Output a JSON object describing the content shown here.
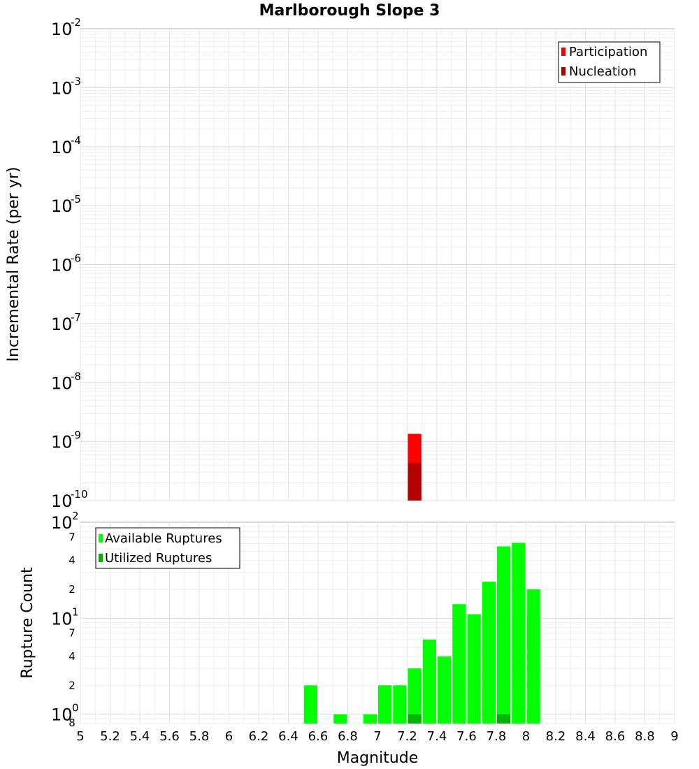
{
  "chart_data": [
    {
      "type": "bar",
      "title": "Marlborough Slope 3",
      "xlabel": "Magnitude",
      "ylabel": "Incremental Rate (per yr)",
      "yscale": "log",
      "xlim": [
        5,
        9
      ],
      "ylim": [
        1e-10,
        0.01
      ],
      "y_ticks": [
        {
          "base": "10",
          "exp": "-2"
        },
        {
          "base": "10",
          "exp": "-3"
        },
        {
          "base": "10",
          "exp": "-4"
        },
        {
          "base": "10",
          "exp": "-5"
        },
        {
          "base": "10",
          "exp": "-6"
        },
        {
          "base": "10",
          "exp": "-7"
        },
        {
          "base": "10",
          "exp": "-8"
        },
        {
          "base": "10",
          "exp": "-9"
        },
        {
          "base": "10",
          "exp": "-10"
        }
      ],
      "legend": {
        "position": "top-right",
        "entries": [
          "Participation",
          "Nucleation"
        ]
      },
      "series": [
        {
          "name": "Participation",
          "color": "#ff0000",
          "points": [
            {
              "x": 7.25,
              "y": 1.35e-09
            }
          ]
        },
        {
          "name": "Nucleation",
          "color": "#b30000",
          "points": [
            {
              "x": 7.25,
              "y": 4.3e-10
            }
          ]
        }
      ]
    },
    {
      "type": "bar",
      "title": "",
      "xlabel": "Magnitude",
      "ylabel": "Rupture Count",
      "yscale": "log",
      "xlim": [
        5,
        9
      ],
      "ylim": [
        0.8,
        100
      ],
      "x_ticks": [
        "5",
        "5.2",
        "5.4",
        "5.6",
        "5.8",
        "6",
        "6.2",
        "6.4",
        "6.6",
        "6.8",
        "7",
        "7.2",
        "7.4",
        "7.6",
        "7.8",
        "8",
        "8.2",
        "8.4",
        "8.6",
        "8.8",
        "9"
      ],
      "y_major_ticks": [
        {
          "value": 100,
          "base": "10",
          "exp": "2"
        },
        {
          "value": 10,
          "base": "10",
          "exp": "1"
        },
        {
          "value": 1,
          "base": "10",
          "exp": "0"
        }
      ],
      "y_minor_ticks": [
        {
          "value": 70,
          "label": "7"
        },
        {
          "value": 40,
          "label": "4"
        },
        {
          "value": 20,
          "label": "2"
        },
        {
          "value": 7,
          "label": "7"
        },
        {
          "value": 4,
          "label": "4"
        },
        {
          "value": 2,
          "label": "2"
        },
        {
          "value": 0.8,
          "label": "8"
        }
      ],
      "legend": {
        "position": "top-left",
        "entries": [
          "Available Ruptures",
          "Utilized Ruptures"
        ]
      },
      "series": [
        {
          "name": "Available Ruptures",
          "color": "#00ff00",
          "points": [
            {
              "x": 6.55,
              "y": 2
            },
            {
              "x": 6.75,
              "y": 1
            },
            {
              "x": 6.95,
              "y": 1
            },
            {
              "x": 7.05,
              "y": 2
            },
            {
              "x": 7.15,
              "y": 2
            },
            {
              "x": 7.25,
              "y": 3
            },
            {
              "x": 7.35,
              "y": 6
            },
            {
              "x": 7.45,
              "y": 4
            },
            {
              "x": 7.55,
              "y": 14
            },
            {
              "x": 7.65,
              "y": 11
            },
            {
              "x": 7.75,
              "y": 24
            },
            {
              "x": 7.85,
              "y": 56
            },
            {
              "x": 7.95,
              "y": 61
            },
            {
              "x": 8.05,
              "y": 20
            }
          ]
        },
        {
          "name": "Utilized Ruptures",
          "color": "#00b300",
          "points": [
            {
              "x": 7.25,
              "y": 1
            },
            {
              "x": 7.85,
              "y": 1
            }
          ]
        }
      ]
    }
  ]
}
